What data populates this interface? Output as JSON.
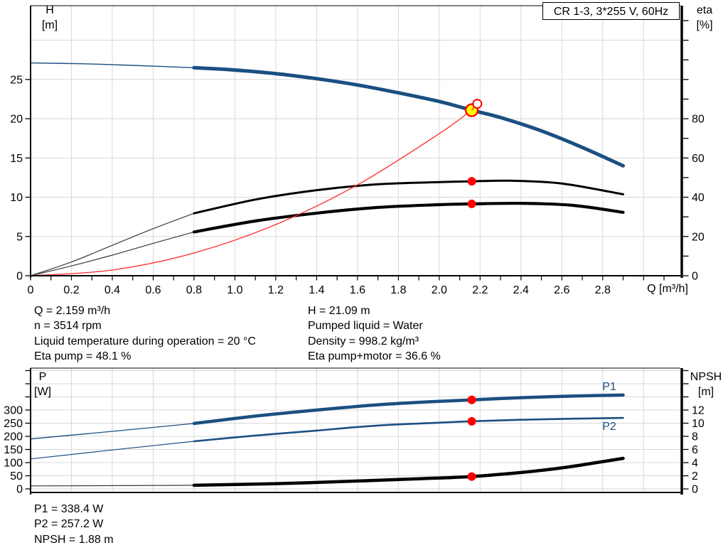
{
  "title_box": {
    "label": "CR 1-3, 3*255 V, 60Hz"
  },
  "info_blocks": {
    "top_left": [
      "Q = 2.159 m³/h",
      "n = 3514 rpm",
      "Liquid temperature during operation = 20 °C",
      "Eta pump = 48.1 %"
    ],
    "top_right": [
      "H = 21.09 m",
      "Pumped liquid = Water",
      "Density = 998.2 kg/m³",
      "Eta pump+motor = 36.6 %"
    ],
    "bottom": [
      "P1 = 338.4 W",
      "P2 = 257.2 W",
      "NPSH = 1.88 m"
    ]
  },
  "colors": {
    "blue": "#1b4f82",
    "black": "#000000",
    "gray_thin": "#3a3a3a",
    "red": "#ff2a2a",
    "marker_red": "#ff0000",
    "marker_yellow": "#ffff00",
    "grid": "#d8d8d8",
    "frame": "#000000",
    "text": "#000000"
  },
  "chart_data": [
    {
      "type": "line",
      "title": "CR 1-3, 3*255 V, 60Hz",
      "x_axis": {
        "label": "Q [m³/h]",
        "range": [
          0,
          3.18
        ],
        "labeled_ticks": [
          0,
          0.2,
          0.4,
          0.6,
          0.8,
          1.0,
          1.2,
          1.4,
          1.6,
          1.8,
          2.0,
          2.2,
          2.4,
          2.6,
          2.8
        ],
        "tick_labels": [
          "0",
          "0.2",
          "0.4",
          "0.6",
          "0.8",
          "1.0",
          "1.2",
          "1.4",
          "1.6",
          "1.8",
          "2.0",
          "2.2",
          "2.4",
          "2.6",
          "2.8"
        ],
        "minor_ticks": [
          0,
          0.1,
          0.2,
          0.3,
          0.4,
          0.5,
          0.6,
          0.7,
          0.8,
          0.9,
          1.0,
          1.1,
          1.2,
          1.3,
          1.4,
          1.5,
          1.6,
          1.7,
          1.8,
          1.9,
          2.0,
          2.1,
          2.2,
          2.3,
          2.4,
          2.5,
          2.6,
          2.7,
          2.8,
          2.9,
          3.0,
          3.1
        ],
        "grid_lines": [
          0.2,
          0.4,
          0.6,
          0.8,
          1.0,
          1.2,
          1.4,
          1.6,
          1.8,
          2.0,
          2.2,
          2.4,
          2.6,
          2.8,
          3.0
        ],
        "has_axis_ticks": true
      },
      "y_left": {
        "label": "H",
        "unit": "[m]",
        "range": [
          0,
          34.4
        ],
        "labeled_ticks": [
          0,
          5,
          10,
          15,
          20,
          25
        ],
        "minor_ticks": [
          0,
          5,
          10,
          15,
          20,
          25
        ],
        "grid_lines": [
          5,
          10,
          15,
          20,
          25,
          30
        ]
      },
      "y_right": {
        "label": "eta",
        "unit": "[%]",
        "range": [
          0,
          137.6
        ],
        "labeled_ticks": [
          0,
          20,
          40,
          60,
          80
        ],
        "minor_ticks": [
          0,
          10,
          20,
          30,
          40,
          50,
          60,
          70,
          80,
          90,
          100,
          110,
          120,
          130
        ],
        "grid_lines": []
      },
      "series": [
        {
          "name": "H curve low-flow extension",
          "axis": "left",
          "color": "blue",
          "width": 1.4,
          "x": [
            0,
            0.25,
            0.5,
            0.8
          ],
          "y": [
            27.1,
            27.0,
            26.8,
            26.5
          ]
        },
        {
          "name": "H-Q curve",
          "axis": "left",
          "color": "blue",
          "width": 5,
          "x": [
            0.8,
            1.0,
            1.2,
            1.4,
            1.6,
            1.8,
            2.0,
            2.159,
            2.3,
            2.5,
            2.7,
            2.9
          ],
          "y": [
            26.5,
            26.2,
            25.75,
            25.1,
            24.3,
            23.3,
            22.2,
            21.09,
            20.15,
            18.45,
            16.35,
            14.0
          ]
        },
        {
          "name": "Eta pump low-flow extension",
          "axis": "right",
          "color": "gray_thin",
          "width": 1.2,
          "x": [
            0,
            0.2,
            0.4,
            0.6,
            0.8
          ],
          "y": [
            0,
            7,
            15.5,
            24,
            31.8
          ]
        },
        {
          "name": "Eta pump",
          "axis": "right",
          "color": "black",
          "width": 3,
          "x": [
            0.8,
            1.1,
            1.4,
            1.7,
            2.0,
            2.159,
            2.35,
            2.6,
            2.9
          ],
          "y": [
            31.8,
            38.8,
            43.6,
            46.6,
            47.7,
            48.1,
            48.4,
            47.0,
            41.5
          ]
        },
        {
          "name": "Eta pump+motor low-flow extension",
          "axis": "right",
          "color": "gray_thin",
          "width": 1.2,
          "x": [
            0,
            0.2,
            0.4,
            0.6,
            0.8
          ],
          "y": [
            0,
            5,
            10.5,
            16.5,
            22.3
          ]
        },
        {
          "name": "Eta pump+motor",
          "axis": "right",
          "color": "black",
          "width": 4.2,
          "x": [
            0.8,
            1.1,
            1.4,
            1.7,
            2.0,
            2.159,
            2.4,
            2.65,
            2.9
          ],
          "y": [
            22.3,
            27.9,
            31.9,
            34.8,
            36.2,
            36.6,
            36.9,
            35.9,
            32.3
          ]
        },
        {
          "name": "System curve",
          "axis": "left",
          "color": "red",
          "width": 1.3,
          "x": [
            0,
            0.4,
            0.8,
            1.2,
            1.6,
            2.0,
            2.159
          ],
          "y": [
            0,
            0.72,
            2.9,
            6.52,
            11.58,
            18.1,
            21.09
          ]
        }
      ],
      "markers": [
        {
          "kind": "dot",
          "axis": "right",
          "x": 2.159,
          "y": 48.1,
          "name": "eta-pump-point"
        },
        {
          "kind": "dot",
          "axis": "right",
          "x": 2.159,
          "y": 36.6,
          "name": "eta-pump-motor-point"
        },
        {
          "kind": "operating_point",
          "axis": "left",
          "x": 2.159,
          "y": 21.09,
          "name": "duty-point"
        },
        {
          "kind": "rated_point",
          "axis": "left",
          "x": 2.186,
          "y": 21.9,
          "name": "rated-duty-point"
        }
      ]
    },
    {
      "type": "line",
      "title": "Power and NPSH curves",
      "x_axis": {
        "label": "",
        "range": [
          0,
          3.18
        ],
        "labeled_ticks": [],
        "tick_labels": [],
        "minor_ticks": [],
        "grid_lines": [
          0.2,
          0.4,
          0.6,
          0.8,
          1.0,
          1.2,
          1.4,
          1.6,
          1.8,
          2.0,
          2.2,
          2.4,
          2.6,
          2.8,
          3.0
        ],
        "has_axis_ticks": false
      },
      "y_left": {
        "label": "P",
        "unit": "[W]",
        "range": [
          0,
          459.5
        ],
        "labeled_ticks": [
          0,
          50,
          100,
          150,
          200,
          250,
          300
        ],
        "minor_ticks": [
          0,
          50,
          100,
          150,
          200,
          250,
          300,
          350,
          400,
          450
        ],
        "grid_lines": [
          0,
          50,
          100,
          150,
          200,
          250,
          300,
          350,
          400,
          450
        ]
      },
      "y_right": {
        "label": "NPSH",
        "unit": "[m]",
        "range": [
          0,
          18.38
        ],
        "labeled_ticks": [
          0,
          2,
          4,
          6,
          8,
          10,
          12
        ],
        "minor_ticks": [
          0,
          2,
          4,
          6,
          8,
          10,
          12,
          14,
          16,
          18
        ],
        "grid_lines": []
      },
      "labels": {
        "p1": "P1",
        "p2": "P2"
      },
      "series": [
        {
          "name": "P1 low-flow extension",
          "axis": "left",
          "color": "blue",
          "width": 1.3,
          "x": [
            0,
            0.4,
            0.8
          ],
          "y": [
            190,
            219,
            249
          ]
        },
        {
          "name": "P1 power input",
          "axis": "left",
          "color": "blue",
          "width": 4.5,
          "x": [
            0.8,
            1.1,
            1.4,
            1.7,
            2.0,
            2.159,
            2.4,
            2.65,
            2.9
          ],
          "y": [
            249,
            277,
            300,
            320,
            333,
            338.4,
            347,
            353,
            357
          ]
        },
        {
          "name": "P2 low-flow extension",
          "axis": "left",
          "color": "blue",
          "width": 1.2,
          "x": [
            0,
            0.4,
            0.8
          ],
          "y": [
            114,
            148,
            181
          ]
        },
        {
          "name": "P2 shaft power",
          "axis": "left",
          "color": "blue",
          "width": 2.6,
          "x": [
            0.8,
            1.1,
            1.4,
            1.7,
            2.0,
            2.159,
            2.4,
            2.65,
            2.9
          ],
          "y": [
            181,
            203,
            222,
            241,
            252,
            257.2,
            263,
            267,
            270
          ]
        },
        {
          "name": "NPSH low-flow extension",
          "axis": "right",
          "color": "gray_thin",
          "width": 1.2,
          "x": [
            0,
            0.8
          ],
          "y": [
            0.45,
            0.55
          ]
        },
        {
          "name": "NPSH",
          "axis": "right",
          "color": "black",
          "width": 4.5,
          "x": [
            0.8,
            1.2,
            1.6,
            1.9,
            2.159,
            2.4,
            2.6,
            2.75,
            2.9
          ],
          "y": [
            0.55,
            0.8,
            1.2,
            1.55,
            1.88,
            2.5,
            3.2,
            3.9,
            4.65
          ]
        }
      ],
      "markers": [
        {
          "kind": "dot",
          "axis": "left",
          "x": 2.159,
          "y": 338.4,
          "name": "p1-point"
        },
        {
          "kind": "dot",
          "axis": "left",
          "x": 2.159,
          "y": 257.2,
          "name": "p2-point"
        },
        {
          "kind": "dot",
          "axis": "right",
          "x": 2.159,
          "y": 1.88,
          "name": "npsh-point"
        }
      ]
    }
  ]
}
